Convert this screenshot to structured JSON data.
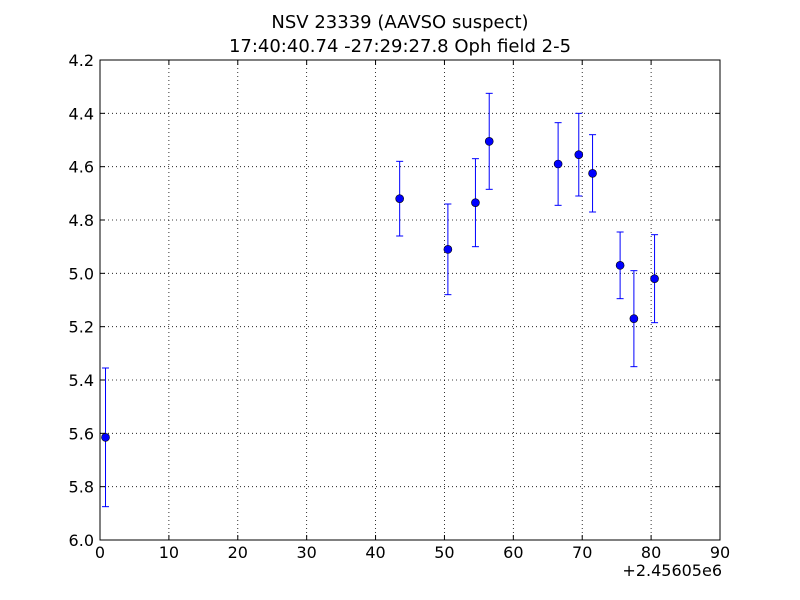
{
  "chart_data": {
    "type": "scatter",
    "title": "NSV 23339 (AAVSO suspect)",
    "subtitle": "17:40:40.74 -27:29:27.8 Oph field 2-5",
    "xlabel": "",
    "ylabel": "",
    "x_offset_label": "+2.45605e6",
    "xlim": [
      0,
      90
    ],
    "ylim": [
      4.2,
      6.0
    ],
    "y_inverted": true,
    "grid": true,
    "grid_style": "dotted",
    "x_ticks": [
      "0",
      "10",
      "20",
      "30",
      "40",
      "50",
      "60",
      "70",
      "80",
      "90"
    ],
    "y_ticks": [
      "4.2",
      "4.4",
      "4.6",
      "4.8",
      "5.0",
      "5.2",
      "5.4",
      "5.6",
      "5.8",
      "6.0"
    ],
    "marker_color": "#0000ff",
    "series": [
      {
        "points": [
          {
            "x": 0.8,
            "y": 5.615,
            "err": 0.26
          },
          {
            "x": 43.5,
            "y": 4.72,
            "err": 0.14
          },
          {
            "x": 50.5,
            "y": 4.91,
            "err": 0.17
          },
          {
            "x": 54.5,
            "y": 4.735,
            "err": 0.165
          },
          {
            "x": 56.5,
            "y": 4.505,
            "err": 0.18
          },
          {
            "x": 66.5,
            "y": 4.59,
            "err": 0.155
          },
          {
            "x": 69.5,
            "y": 4.555,
            "err": 0.155
          },
          {
            "x": 71.5,
            "y": 4.625,
            "err": 0.145
          },
          {
            "x": 75.5,
            "y": 4.97,
            "err": 0.125
          },
          {
            "x": 77.5,
            "y": 5.17,
            "err": 0.18
          },
          {
            "x": 80.5,
            "y": 5.02,
            "err": 0.165
          }
        ]
      }
    ]
  }
}
